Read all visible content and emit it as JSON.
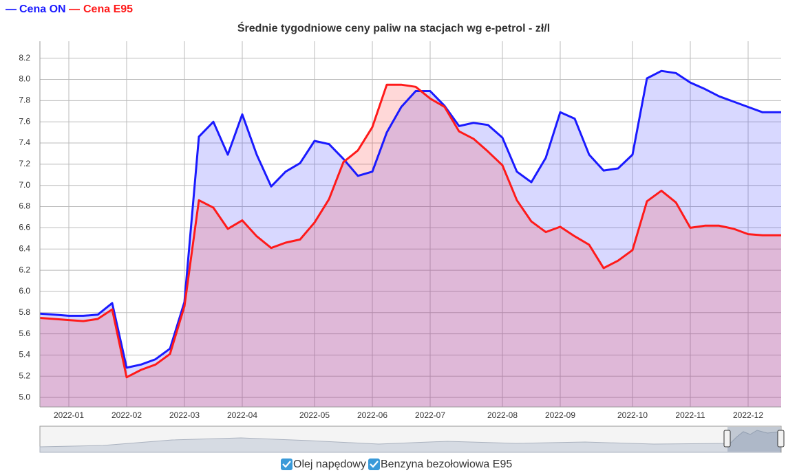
{
  "chart_data": {
    "type": "area",
    "title": "Średnie tygodniowe ceny paliw na stacjach wg e-petrol - zł/l",
    "categories": [
      null,
      null,
      "2022-01",
      null,
      null,
      null,
      "2022-02",
      null,
      null,
      null,
      "2022-03",
      null,
      null,
      null,
      "2022-04",
      null,
      null,
      null,
      null,
      "2022-05",
      null,
      null,
      null,
      "2022-06",
      null,
      null,
      null,
      "2022-07",
      null,
      null,
      null,
      null,
      "2022-08",
      null,
      null,
      null,
      "2022-09",
      null,
      null,
      null,
      null,
      "2022-10",
      null,
      null,
      null,
      "2022-11",
      null,
      null,
      null,
      "2022-12",
      null,
      null
    ],
    "series": [
      {
        "name": "Cena ON",
        "color": "#1a1aff",
        "fill": "rgba(60,60,255,0.2)",
        "values": [
          5.79,
          5.78,
          5.77,
          5.77,
          5.78,
          5.89,
          5.28,
          5.31,
          5.36,
          5.46,
          5.9,
          7.46,
          7.6,
          7.29,
          7.67,
          7.29,
          6.99,
          7.13,
          7.21,
          7.42,
          7.39,
          7.25,
          7.09,
          7.13,
          7.5,
          7.74,
          7.89,
          7.89,
          7.75,
          7.56,
          7.59,
          7.57,
          7.45,
          7.13,
          7.03,
          7.26,
          7.69,
          7.63,
          7.29,
          7.14,
          7.16,
          7.29,
          8.01,
          8.08,
          8.06,
          7.97,
          7.91,
          7.84,
          7.79,
          7.74,
          7.69,
          7.69
        ]
      },
      {
        "name": "Cena E95",
        "color": "#ff1a1a",
        "fill": "rgba(255,60,60,0.2)",
        "values": [
          5.75,
          5.74,
          5.73,
          5.72,
          5.74,
          5.83,
          5.19,
          5.26,
          5.31,
          5.41,
          5.86,
          6.86,
          6.79,
          6.59,
          6.67,
          6.52,
          6.41,
          6.46,
          6.49,
          6.65,
          6.87,
          7.22,
          7.33,
          7.55,
          7.95,
          7.95,
          7.93,
          7.82,
          7.74,
          7.51,
          7.44,
          7.32,
          7.19,
          6.86,
          6.66,
          6.56,
          6.61,
          6.52,
          6.44,
          6.22,
          6.29,
          6.39,
          6.85,
          6.95,
          6.84,
          6.6,
          6.62,
          6.62,
          6.59,
          6.54,
          6.53,
          6.53
        ]
      }
    ],
    "ylim": [
      4.91,
      8.36
    ],
    "yticks": [
      {
        "value": 5,
        "label": "5.0"
      },
      5.2,
      5.4,
      5.6,
      5.8,
      {
        "value": 6,
        "label": "6.0"
      },
      6.2,
      6.4,
      6.6,
      6.8,
      {
        "value": 7,
        "label": "7.0"
      },
      7.2,
      7.4,
      7.6,
      7.8,
      {
        "value": 8,
        "label": "8.0"
      },
      8.2
    ],
    "grid": true,
    "controls": [
      "Olej napędowy",
      "Benzyna bezołowiowa E95"
    ]
  }
}
